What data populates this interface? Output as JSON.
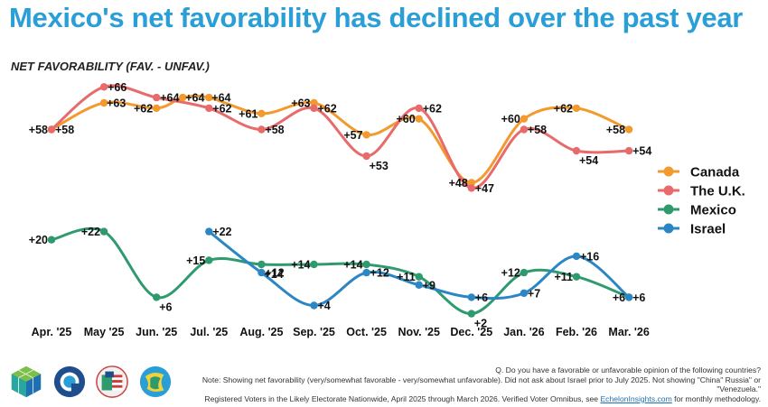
{
  "title": "Mexico's net favorability has declined over the past year",
  "subtitle": "NET FAVORABILITY (FAV. - UNFAV.)",
  "chart_data": {
    "type": "line",
    "categories": [
      "Apr. '25",
      "May '25",
      "Jun. '25",
      "Jul. '25",
      "Aug. '25",
      "Sep. '25",
      "Oct. '25",
      "Nov. '25",
      "Dec. '25",
      "Jan. '26",
      "Feb. '26",
      "Mar. '26"
    ],
    "series": [
      {
        "name": "Canada",
        "color": "#f39a2e",
        "x": [
          0,
          1,
          2,
          2.5,
          3,
          4,
          5,
          6,
          7,
          8,
          9,
          10,
          11
        ],
        "values": [
          58,
          63,
          62,
          64,
          64,
          61,
          63,
          57,
          60,
          48,
          60,
          62,
          58
        ]
      },
      {
        "name": "The U.K.",
        "color": "#e86a6a",
        "x": [
          0,
          1,
          2,
          3,
          4,
          5,
          6,
          7,
          8,
          9,
          10,
          11
        ],
        "values": [
          58,
          66,
          64,
          62,
          58,
          62,
          53,
          62,
          47,
          58,
          54,
          54
        ]
      },
      {
        "name": "Mexico",
        "color": "#2e9a6e",
        "x": [
          0,
          1,
          2,
          3,
          4,
          5,
          6,
          7,
          8,
          9,
          10,
          11
        ],
        "values": [
          20,
          22,
          6,
          15,
          14,
          14,
          14,
          11,
          2,
          12,
          11,
          6
        ]
      },
      {
        "name": "Israel",
        "color": "#2b86c4",
        "x": [
          3,
          4,
          5,
          6,
          7,
          8,
          9,
          10,
          11
        ],
        "values": [
          22,
          12,
          4,
          12,
          9,
          6,
          7,
          16,
          6
        ]
      }
    ],
    "legend": "right",
    "grid": false
  },
  "point_labels": {
    "Canada": [
      "+58",
      "+63",
      "+62",
      "+64",
      "+64",
      "+61",
      "+63",
      "+57",
      "+60",
      "+48",
      "+60",
      "+62",
      "+58"
    ],
    "The U.K.": [
      "+58",
      "+66",
      "+64",
      "+62",
      "+58",
      "+62",
      "+53",
      "+62",
      "+47",
      "+58",
      "+54",
      "+54"
    ],
    "Mexico": [
      "+20",
      "+22",
      "+6",
      "+15",
      "+14",
      "+14",
      "+14",
      "+11",
      "+2",
      "+12",
      "+11",
      "+6"
    ],
    "Israel": [
      "+22",
      "+12",
      "+4",
      "+12",
      "+9",
      "+6",
      "+7",
      "+16",
      "+6"
    ]
  },
  "footer": {
    "question": "Q. Do you have a favorable or unfavorable opinion of the following countries?",
    "note": "Note: Showing net favorability (very/somewhat favorable - very/somewhat unfavorable). Did not ask about Israel prior to July 2025. Not showing \"China\" Russia\" or \"Venezuela.\"",
    "methodology_prefix": "Registered Voters in the Likely Electorate Nationwide, April 2025 through March 2026. Verified Voter Omnibus, see ",
    "link_text": "EchelonInsights.com",
    "methodology_suffix": " for monthly methodology."
  },
  "logos": [
    "cube-logo",
    "ring-logo",
    "flags-logo",
    "globe-logo"
  ]
}
